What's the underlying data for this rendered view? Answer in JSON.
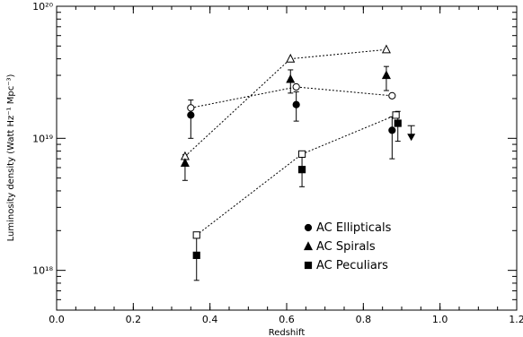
{
  "chart_data": {
    "type": "scatter",
    "title": "",
    "xlabel": "Redshift",
    "ylabel": "Luminosity density (Watt Hz⁻¹ Mpc⁻³)",
    "xlim": [
      0.0,
      1.2
    ],
    "ylog": true,
    "ylim": [
      5e+17,
      1e+20
    ],
    "xticks": [
      0.0,
      0.2,
      0.4,
      0.6,
      0.8,
      1.0,
      1.2
    ],
    "xtick_labels": [
      "0.0",
      "0.2",
      "0.4",
      "0.6",
      "0.8",
      "1.0",
      "1.2"
    ],
    "yticks": [
      1e+18,
      1e+19,
      1e+20
    ],
    "ytick_labels": [
      "10¹⁸",
      "10¹⁹",
      "10²⁰"
    ],
    "grid": false,
    "legend_position": "lower-right",
    "legend": [
      "AC Ellipticals",
      "AC Spirals",
      "AC Peculiars"
    ],
    "series": [
      {
        "name": "AC Ellipticals",
        "marker": "circle",
        "points": [
          {
            "x": 0.35,
            "y": 1.5e+19,
            "lo": 1e+19,
            "hi": 1.95e+19
          },
          {
            "x": 0.625,
            "y": 1.8e+19,
            "lo": 1.35e+19,
            "hi": 2.25e+19
          },
          {
            "x": 0.875,
            "y": 1.15e+19,
            "lo": 7e+18,
            "hi": 1.45e+19
          }
        ],
        "comparison": [
          {
            "x": 0.35,
            "y": 1.7e+19
          },
          {
            "x": 0.625,
            "y": 2.45e+19
          },
          {
            "x": 0.875,
            "y": 2.1e+19
          }
        ]
      },
      {
        "name": "AC Spirals",
        "marker": "triangle",
        "points": [
          {
            "x": 0.335,
            "y": 6.5e+18,
            "lo": 4.8e+18,
            "hi": 7.5e+18
          },
          {
            "x": 0.61,
            "y": 2.8e+19,
            "lo": 2.2e+19,
            "hi": 3.3e+19
          },
          {
            "x": 0.86,
            "y": 3e+19,
            "lo": 2.3e+19,
            "hi": 3.5e+19
          },
          {
            "x": 0.925,
            "y": 1.1e+19,
            "upper_limit": true
          }
        ],
        "comparison": [
          {
            "x": 0.335,
            "y": 7.3e+18
          },
          {
            "x": 0.61,
            "y": 4e+19
          },
          {
            "x": 0.86,
            "y": 4.7e+19
          }
        ]
      },
      {
        "name": "AC Peculiars",
        "marker": "square",
        "points": [
          {
            "x": 0.365,
            "y": 1.3e+18,
            "lo": 8.4e+17,
            "hi": 1.8e+18
          },
          {
            "x": 0.64,
            "y": 5.8e+18,
            "lo": 4.3e+18,
            "hi": 7.2e+18
          },
          {
            "x": 0.89,
            "y": 1.3e+19,
            "lo": 9.5e+18,
            "hi": 1.6e+19
          }
        ],
        "comparison": [
          {
            "x": 0.365,
            "y": 1.85e+18
          },
          {
            "x": 0.64,
            "y": 7.6e+18
          },
          {
            "x": 0.885,
            "y": 1.5e+19
          }
        ]
      }
    ]
  }
}
